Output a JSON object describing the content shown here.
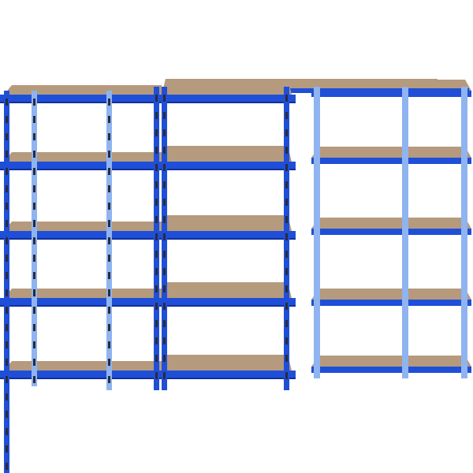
{
  "image": {
    "subject": "shelving-units",
    "colors": {
      "background": "#ffffff",
      "frame_blue": "#1f4fd8",
      "frame_blue_dark": "#12309a",
      "frame_blue_light": "#8fb4f0",
      "board_wood": "#b59a7e",
      "board_wood_dark": "#8c7358",
      "slot_dark": "#2a2a3a"
    }
  }
}
